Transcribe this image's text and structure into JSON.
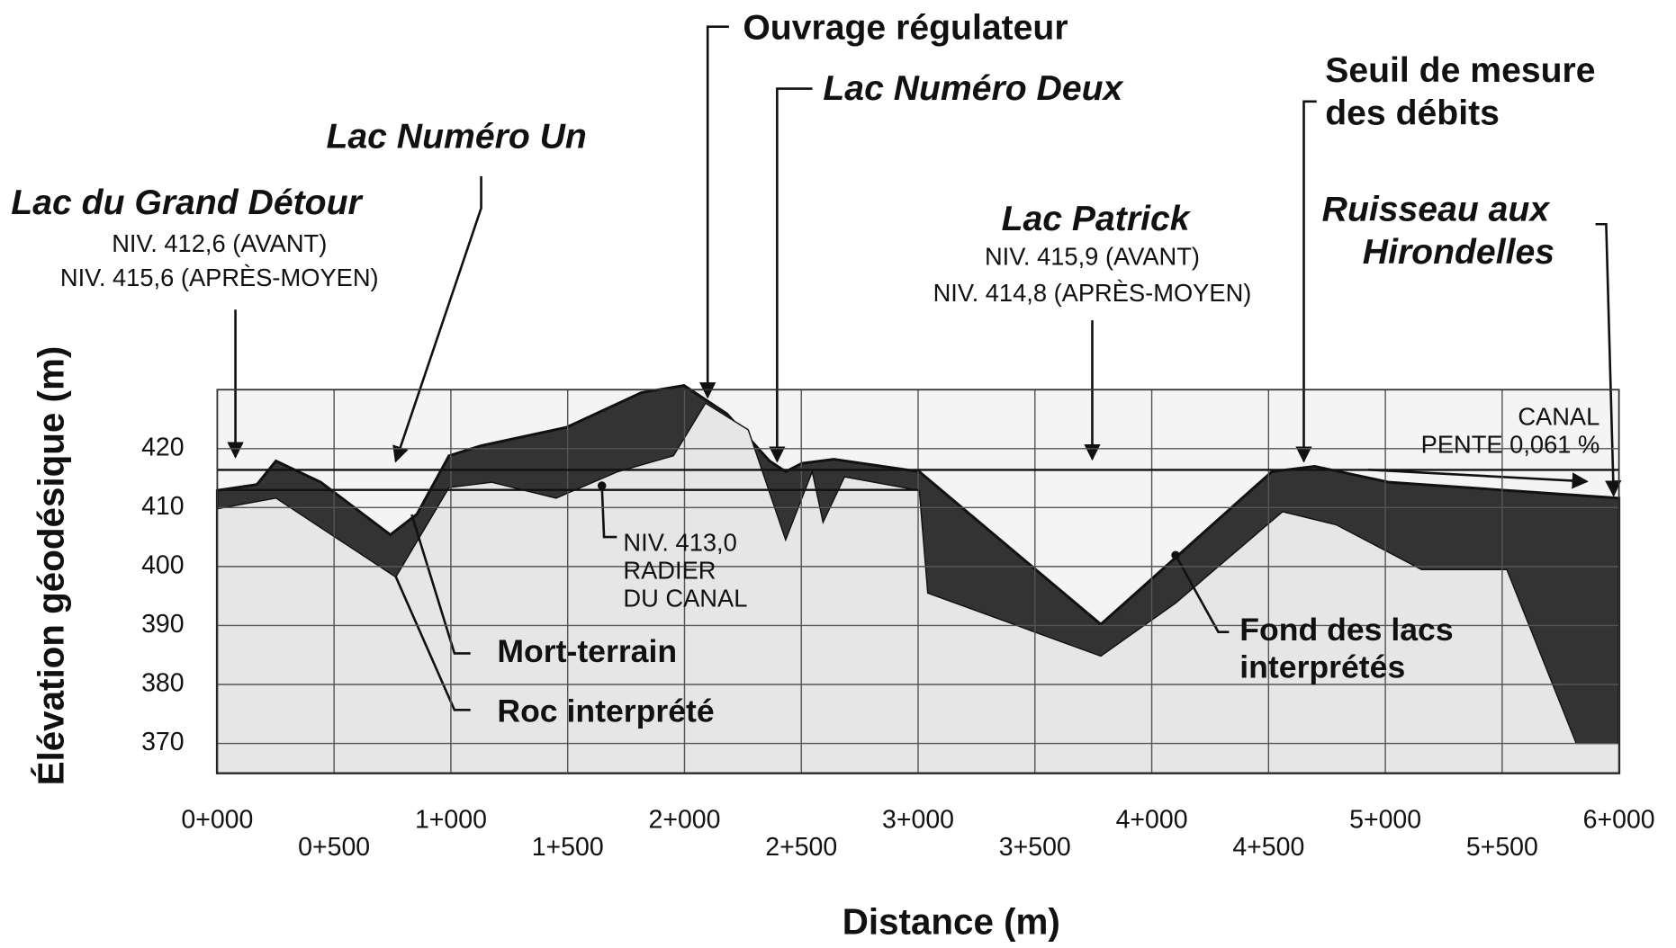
{
  "chart_data": {
    "type": "area",
    "xlabel": "Distance  (m)",
    "ylabel": "Élévation géodésique (m)",
    "xlim": [
      0,
      6000
    ],
    "ylim": [
      365,
      430
    ],
    "xticks": [
      {
        "value": 0,
        "label": "0+000"
      },
      {
        "value": 500,
        "label": "0+500"
      },
      {
        "value": 1000,
        "label": "1+000"
      },
      {
        "value": 1500,
        "label": "1+500"
      },
      {
        "value": 2000,
        "label": "2+000"
      },
      {
        "value": 2500,
        "label": "2+500"
      },
      {
        "value": 3000,
        "label": "3+000"
      },
      {
        "value": 3500,
        "label": "3+500"
      },
      {
        "value": 4000,
        "label": "4+000"
      },
      {
        "value": 4500,
        "label": "4+500"
      },
      {
        "value": 5000,
        "label": "5+000"
      },
      {
        "value": 5500,
        "label": "5+500"
      },
      {
        "value": 6000,
        "label": "6+000"
      }
    ],
    "yticks": [
      370,
      380,
      390,
      400,
      410,
      420
    ],
    "grid": true,
    "reference_lines": [
      413,
      416.4
    ],
    "series": [
      {
        "name": "Mort-terrain",
        "color": "#333333",
        "x": [
          0,
          169,
          251,
          443,
          741,
          855,
          992,
          1129,
          1495,
          1815,
          1998,
          2181,
          2364,
          2433,
          2502,
          2639,
          3005,
          3782,
          4514,
          4697,
          5016,
          6000
        ],
        "values": [
          412.9,
          413.9,
          417.9,
          414.3,
          405.4,
          408.9,
          418.8,
          420.5,
          423.6,
          429.5,
          430.7,
          425.9,
          417.9,
          416.1,
          417.5,
          418.2,
          416.1,
          390.2,
          416.1,
          417,
          414.3,
          411.6
        ]
      },
      {
        "name": "Roc interprété",
        "color": "#e6e6e6",
        "x": [
          0,
          251,
          764,
          992,
          1175,
          1450,
          1715,
          1953,
          2090,
          2273,
          2433,
          2547,
          2593,
          2685,
          3005,
          3041,
          3782,
          4102,
          4560,
          4789,
          5155,
          5520,
          5817,
          6000
        ],
        "values": [
          409.8,
          411.6,
          398.2,
          413.4,
          414.3,
          411.6,
          416.1,
          418.8,
          427.7,
          423.2,
          404.5,
          416.1,
          407.5,
          415.2,
          412.9,
          395.5,
          384.8,
          393.8,
          409.3,
          407.1,
          399.5,
          399.5,
          370,
          370
        ]
      }
    ],
    "annotations": [
      "Ouvrage régulateur",
      "Lac Numéro Deux",
      "Seuil de mesure",
      "des débits",
      "Lac  Numéro Un",
      "Lac du Grand Détour",
      "NIV. 412,6 (AVANT)",
      "NIV. 415,6 (APRÈS-MOYEN)",
      "Lac Patrick",
      "NIV. 415,9 (AVANT)",
      "NIV. 414,8 (APRÈS-MOYEN)",
      "Ruisseau aux",
      "Hirondelles",
      "CANAL",
      "PENTE 0,061 %",
      "NIV. 413,0",
      "RADIER",
      "DU CANAL",
      "Mort-terrain",
      "Roc interprété",
      "Fond des lacs",
      "interprétés"
    ]
  }
}
